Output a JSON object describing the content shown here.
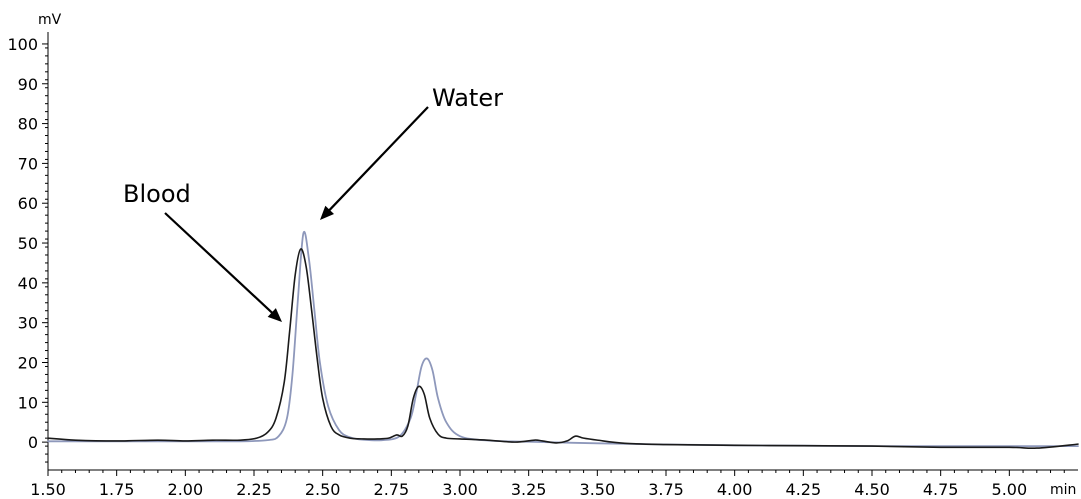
{
  "chart_data": {
    "type": "line",
    "title": "",
    "xlabel": "",
    "ylabel": "",
    "x_unit": "min",
    "y_unit": "mV",
    "xlim": [
      1.5,
      5.25
    ],
    "ylim": [
      -7,
      103
    ],
    "x_ticks_major": [
      1.5,
      1.75,
      2.0,
      2.25,
      2.5,
      2.75,
      3.0,
      3.25,
      3.5,
      3.75,
      4.0,
      4.25,
      4.5,
      4.75,
      5.0
    ],
    "x_tick_labels": [
      "1.50",
      "1.75",
      "2.00",
      "2.25",
      "2.50",
      "2.75",
      "3.00",
      "3.25",
      "3.50",
      "3.75",
      "4.00",
      "4.25",
      "4.50",
      "4.75",
      "5.00"
    ],
    "y_ticks_major": [
      0,
      10,
      20,
      30,
      40,
      50,
      60,
      70,
      80,
      90,
      100
    ],
    "y_tick_labels": [
      "0",
      "10",
      "20",
      "30",
      "40",
      "50",
      "60",
      "70",
      "80",
      "90",
      "100"
    ],
    "grid": false,
    "series": [
      {
        "color": "#8e98bb",
        "x": [
          1.5,
          1.75,
          2.0,
          2.2,
          2.3,
          2.34,
          2.37,
          2.39,
          2.41,
          2.43,
          2.45,
          2.47,
          2.49,
          2.52,
          2.56,
          2.6,
          2.65,
          2.72,
          2.78,
          2.82,
          2.84,
          2.86,
          2.88,
          2.9,
          2.92,
          2.95,
          3.0,
          3.1,
          3.25,
          3.5,
          3.75,
          4.0,
          4.25,
          4.5,
          4.75,
          5.0,
          5.25
        ],
        "y": [
          0.2,
          0.2,
          0.2,
          0.2,
          0.5,
          1.5,
          6,
          17,
          36,
          52.5,
          46,
          33,
          20,
          9,
          3,
          1.2,
          0.6,
          0.5,
          1.5,
          6,
          12,
          19,
          21,
          18,
          11,
          5,
          1.5,
          0.4,
          0.1,
          -0.3,
          -0.6,
          -0.8,
          -0.9,
          -1,
          -1,
          -1,
          -1
        ]
      },
      {
        "color": "#1a1a1a",
        "x": [
          1.5,
          1.6,
          1.75,
          1.9,
          2.0,
          2.1,
          2.2,
          2.26,
          2.3,
          2.33,
          2.36,
          2.38,
          2.4,
          2.42,
          2.44,
          2.46,
          2.48,
          2.5,
          2.53,
          2.56,
          2.6,
          2.65,
          2.7,
          2.74,
          2.77,
          2.79,
          2.81,
          2.83,
          2.85,
          2.87,
          2.89,
          2.92,
          2.95,
          3.0,
          3.1,
          3.2,
          3.27,
          3.3,
          3.35,
          3.39,
          3.42,
          3.45,
          3.5,
          3.6,
          3.75,
          4.0,
          4.25,
          4.5,
          4.75,
          5.0,
          5.1,
          5.25
        ],
        "y": [
          1,
          0.5,
          0.3,
          0.5,
          0.3,
          0.5,
          0.5,
          1,
          2.5,
          6,
          15,
          28,
          42,
          48.5,
          44,
          33,
          21,
          11,
          4,
          1.8,
          1,
          0.8,
          0.8,
          1,
          1.8,
          1.5,
          4,
          11,
          14,
          12,
          6,
          2,
          1,
          0.8,
          0.5,
          0,
          0.5,
          0.3,
          -0.2,
          0.3,
          1.5,
          1,
          0.5,
          -0.3,
          -0.6,
          -0.8,
          -0.9,
          -1,
          -1.3,
          -1.3,
          -1.5,
          -0.5
        ]
      }
    ],
    "annotations": [
      {
        "text": "Water",
        "arrow_to_x": 2.43,
        "arrow_to_y": 53
      },
      {
        "text": "Blood",
        "arrow_to_x": 2.39,
        "arrow_to_y": 27
      }
    ]
  }
}
